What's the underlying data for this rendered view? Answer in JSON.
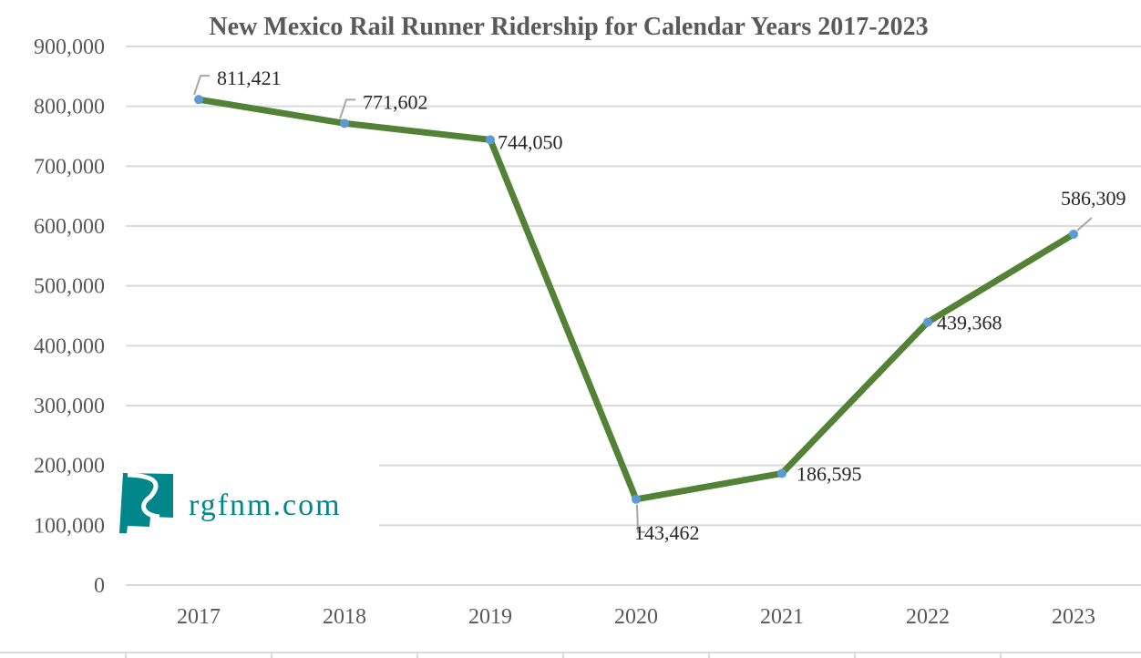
{
  "chart_data": {
    "type": "line",
    "title": "New Mexico Rail Runner Ridership for Calendar Years 2017-2023",
    "xlabel": "",
    "ylabel": "",
    "categories": [
      "2017",
      "2018",
      "2019",
      "2020",
      "2021",
      "2022",
      "2023"
    ],
    "series": [
      {
        "name": "Ridership",
        "values": [
          811421,
          771602,
          744050,
          143462,
          186595,
          439368,
          586309
        ],
        "color": "#538135",
        "marker_color": "#5B9BD5"
      }
    ],
    "data_labels": [
      "811,421",
      "771,602",
      "744,050",
      "143,462",
      "186,595",
      "439,368",
      "586,309"
    ],
    "y_ticks": [
      0,
      100000,
      200000,
      300000,
      400000,
      500000,
      600000,
      700000,
      800000,
      900000
    ],
    "y_tick_labels": [
      "0",
      "100,000",
      "200,000",
      "300,000",
      "400,000",
      "500,000",
      "600,000",
      "700,000",
      "800,000",
      "900,000"
    ],
    "ylim": [
      0,
      900000
    ],
    "grid": true,
    "legend": "none"
  },
  "watermark": {
    "text": "rgfnm.com",
    "color": "#00868B"
  }
}
